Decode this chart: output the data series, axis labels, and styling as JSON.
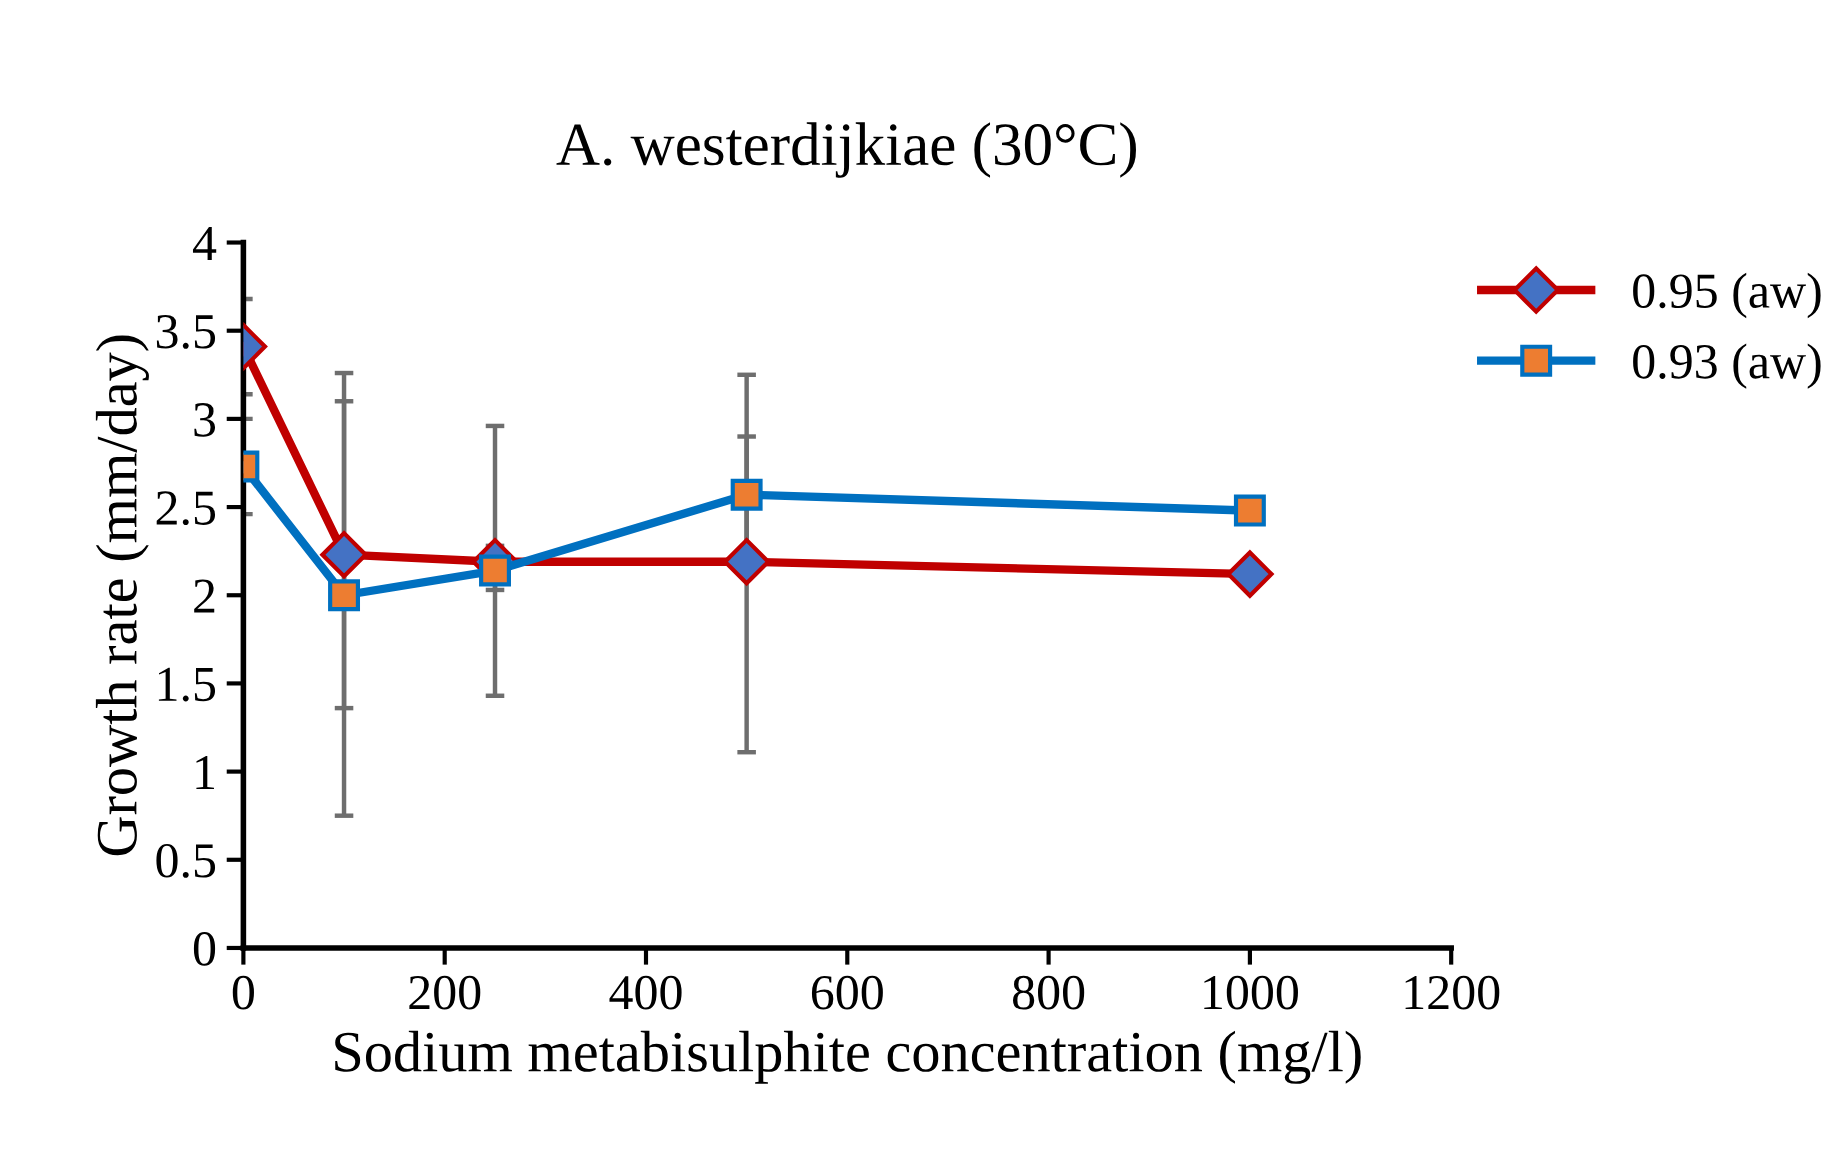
{
  "chart_data": {
    "type": "line",
    "title": "A. westerdijkiae (30°C)",
    "xlabel": "Sodium metabisulphite concentration (mg/l)",
    "ylabel": "Growth rate (mm/day)",
    "x": [
      0,
      100,
      250,
      500,
      1000
    ],
    "series": [
      {
        "name": "0.95 (aw)",
        "color": "#c00000",
        "marker": "diamond",
        "values": [
          3.41,
          2.23,
          2.19,
          2.19,
          2.12
        ],
        "errors": [
          [
            3.14,
            3.68
          ],
          [
            1.36,
            3.1
          ],
          [
            2.03,
            2.28
          ],
          [
            1.11,
            3.25
          ],
          null
        ]
      },
      {
        "name": "0.93 (aw)",
        "color": "#0070c0",
        "marker": "square",
        "values": [
          2.73,
          2.0,
          2.14,
          2.57,
          2.48
        ],
        "errors": [
          [
            2.46,
            3.0
          ],
          [
            0.75,
            3.26
          ],
          [
            1.43,
            2.96
          ],
          [
            2.24,
            2.9
          ],
          null
        ]
      }
    ],
    "xlim": [
      0,
      1200
    ],
    "xticks": [
      0,
      200,
      400,
      600,
      800,
      1000,
      1200
    ],
    "ylim": [
      0,
      4
    ],
    "yticks": [
      0,
      0.5,
      1,
      1.5,
      2,
      2.5,
      3,
      3.5,
      4
    ],
    "grid": false,
    "legend": "top right",
    "line_style": "solid"
  }
}
